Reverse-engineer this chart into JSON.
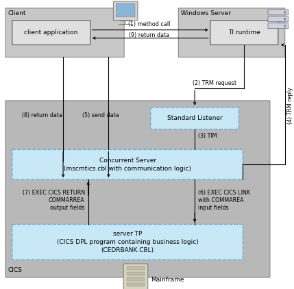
{
  "fig_width": 4.29,
  "fig_height": 4.22,
  "bg_color": "#ffffff",
  "client_label": "Client",
  "windows_server_label": "Windows Server",
  "cics_label": "CICS",
  "mainframe_label": "Mainframe",
  "client_app_label": "client application",
  "ti_runtime_label": "TI runtime",
  "std_listener_label": "Standard Listener",
  "concurrent_label": "Concurrent Server\n(mscmtics.cbl with communication logic)",
  "server_tp_label": "server TP\n(CICS DPL program containing business logic)\n(CEDRBANK.CBL)",
  "arrow1_label": "(1) method call",
  "arrow9_label": "(9) return data",
  "arrow2_label": "(2) TRM request",
  "arrow4_label": "(4) TRM reply",
  "arrow3_label": "(3) TIM",
  "arrow5_label": "(5) send data",
  "arrow8_label": "(8) return data",
  "arrow6_label": "(6) EXEC CICS LINK\nwith COMMAREA\ninput fields",
  "arrow7_label": "(7) EXEC CICS RETURN\nCOMMARREA\noutput fields",
  "gray_light": "#c8c8c8",
  "gray_mid": "#b8b8b8",
  "gray_inner": "#e0e0e0",
  "blue_light": "#c8e8f8",
  "blue_edge": "#6aabcf",
  "box_edge": "#888888",
  "inner_edge": "#555555",
  "arrow_color": "#000000",
  "text_color": "#000000"
}
